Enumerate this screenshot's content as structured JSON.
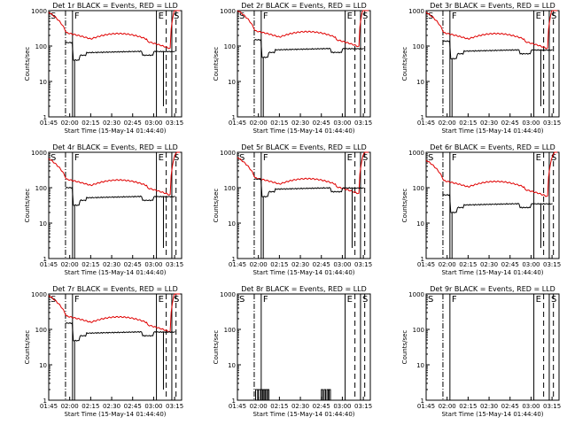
{
  "chart_data": [
    {
      "type": "line",
      "title": "Det 1r BLACK = Events, RED = LLD",
      "has_events": true,
      "events_base": 50,
      "lld_base": 150,
      "events_dropout": true
    },
    {
      "type": "line",
      "title": "Det 2r BLACK = Events, RED = LLD",
      "has_events": true,
      "events_base": 60,
      "lld_base": 170,
      "events_dropout": false
    },
    {
      "type": "line",
      "title": "Det 3r BLACK = Events, RED = LLD",
      "has_events": true,
      "events_base": 55,
      "lld_base": 150,
      "events_dropout": true
    },
    {
      "type": "line",
      "title": "Det 4r BLACK = Events, RED = LLD",
      "has_events": true,
      "events_base": 40,
      "lld_base": 110,
      "events_dropout": true
    },
    {
      "type": "line",
      "title": "Det 5r BLACK = Events, RED = LLD",
      "has_events": true,
      "events_base": 70,
      "lld_base": 120,
      "events_dropout": true
    },
    {
      "type": "line",
      "title": "Det 6r BLACK = Events, RED = LLD",
      "has_events": true,
      "events_base": 25,
      "lld_base": 100,
      "events_dropout": true
    },
    {
      "type": "line",
      "title": "Det 7r BLACK = Events, RED = LLD",
      "has_events": true,
      "events_base": 60,
      "lld_base": 150,
      "events_dropout": true
    },
    {
      "type": "line",
      "title": "Det 8r BLACK = Events, RED = LLD",
      "has_events": false,
      "sparse_events": true
    },
    {
      "type": "line",
      "title": "Det 9r BLACK = Events, RED = LLD",
      "has_events": false,
      "sparse_events": false
    }
  ],
  "common": {
    "ylabel": "Counts/sec",
    "xlabel": "Start Time (15-May-14 01:44:40)",
    "xticks": [
      "01:45",
      "02:00",
      "02:15",
      "02:30",
      "02:45",
      "03:00",
      "03:15"
    ],
    "yticks": [
      "1",
      "10",
      "100",
      "1000"
    ],
    "xlim_minutes": [
      105,
      200
    ],
    "ylim": [
      1,
      1000
    ],
    "yscale": "log",
    "markers": [
      {
        "label": "S",
        "minute": 105,
        "style": "solid"
      },
      {
        "label": "",
        "minute": 117,
        "style": "dashdot"
      },
      {
        "label": "F",
        "minute": 122,
        "style": "solid"
      },
      {
        "label": "E",
        "minute": 182,
        "style": "solid"
      },
      {
        "label": "",
        "minute": 189,
        "style": "dashed"
      },
      {
        "label": "S",
        "minute": 193,
        "style": "solid"
      },
      {
        "label": "",
        "minute": 196,
        "style": "dashed"
      }
    ],
    "colors": {
      "events": "#000000",
      "lld": "#e00000"
    }
  }
}
